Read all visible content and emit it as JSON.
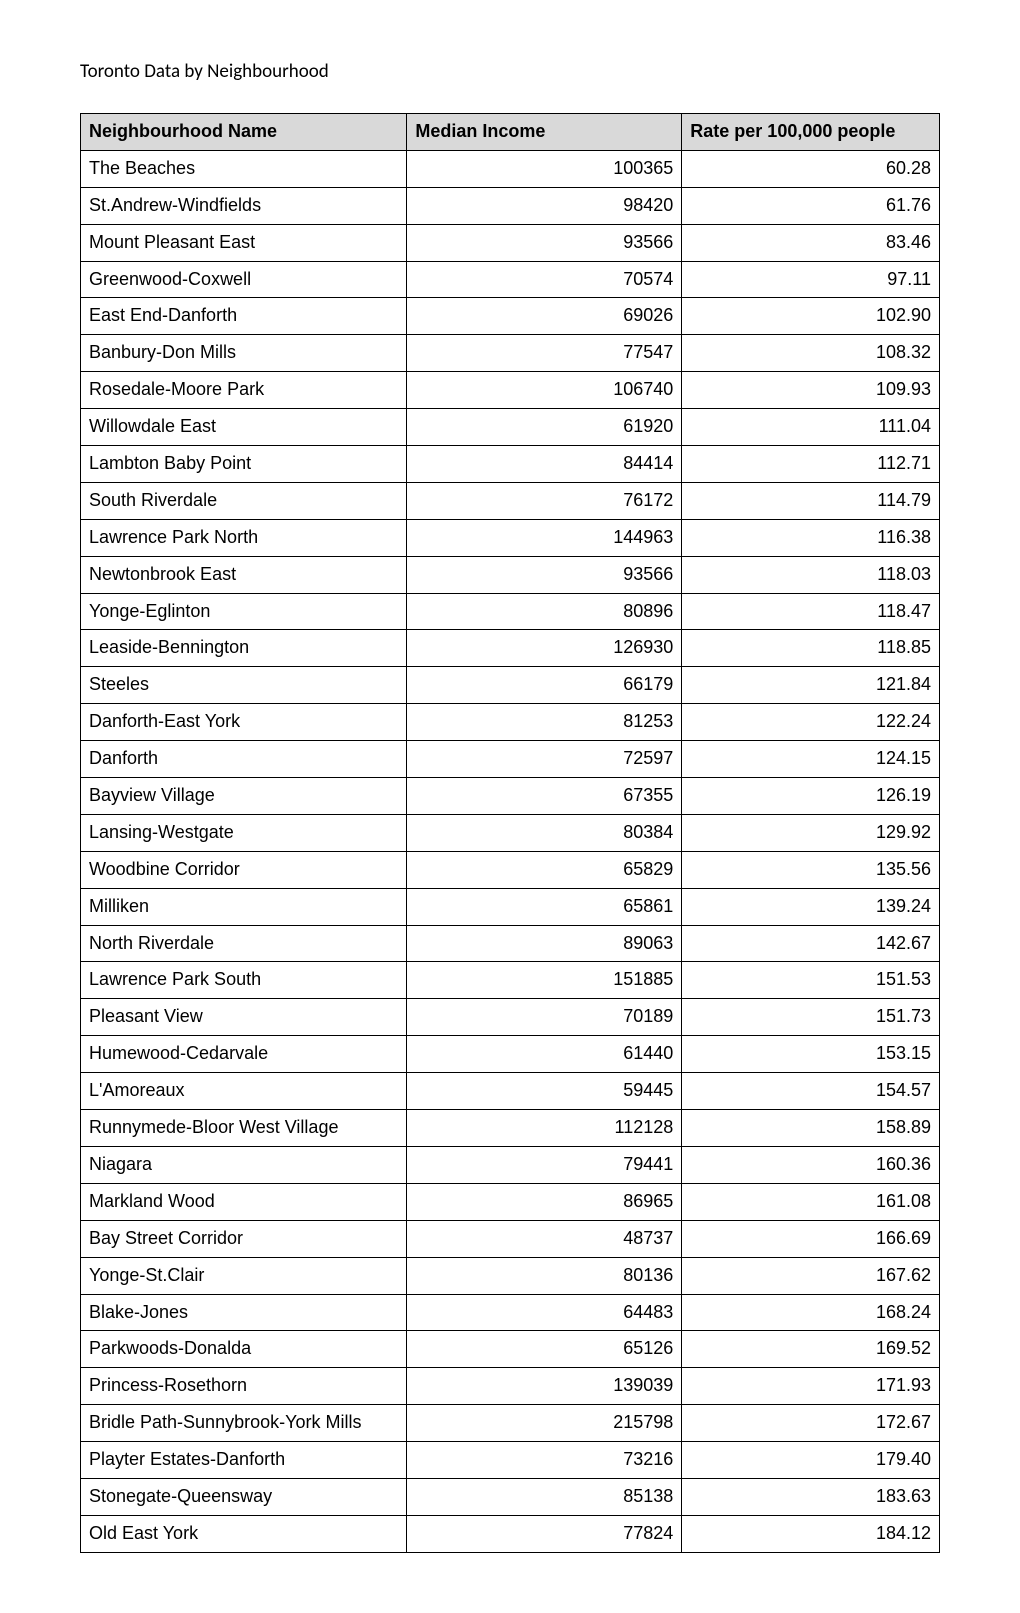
{
  "page": {
    "title": "Toronto Data by Neighbourhood"
  },
  "table": {
    "columns": [
      "Neighbourhood Name",
      "Median Income",
      "Rate per 100,000 people"
    ],
    "header_bg": "#d9d9d9",
    "border_color": "#000000",
    "rows": [
      [
        "The Beaches",
        "100365",
        "60.28"
      ],
      [
        "St.Andrew-Windfields",
        "98420",
        "61.76"
      ],
      [
        "Mount Pleasant East",
        "93566",
        "83.46"
      ],
      [
        "Greenwood-Coxwell",
        "70574",
        "97.11"
      ],
      [
        "East End-Danforth",
        "69026",
        "102.90"
      ],
      [
        "Banbury-Don Mills",
        "77547",
        "108.32"
      ],
      [
        "Rosedale-Moore Park",
        "106740",
        "109.93"
      ],
      [
        "Willowdale East",
        "61920",
        "111.04"
      ],
      [
        "Lambton Baby Point",
        "84414",
        "112.71"
      ],
      [
        "South Riverdale",
        "76172",
        "114.79"
      ],
      [
        "Lawrence Park North",
        "144963",
        "116.38"
      ],
      [
        "Newtonbrook East",
        "93566",
        "118.03"
      ],
      [
        "Yonge-Eglinton",
        "80896",
        "118.47"
      ],
      [
        "Leaside-Bennington",
        "126930",
        "118.85"
      ],
      [
        "Steeles",
        "66179",
        "121.84"
      ],
      [
        "Danforth-East York",
        "81253",
        "122.24"
      ],
      [
        "Danforth",
        "72597",
        "124.15"
      ],
      [
        "Bayview Village",
        "67355",
        "126.19"
      ],
      [
        "Lansing-Westgate",
        "80384",
        "129.92"
      ],
      [
        "Woodbine Corridor",
        "65829",
        "135.56"
      ],
      [
        "Milliken",
        "65861",
        "139.24"
      ],
      [
        "North Riverdale",
        "89063",
        "142.67"
      ],
      [
        "Lawrence Park South",
        "151885",
        "151.53"
      ],
      [
        "Pleasant View",
        "70189",
        "151.73"
      ],
      [
        "Humewood-Cedarvale",
        "61440",
        "153.15"
      ],
      [
        "L'Amoreaux",
        "59445",
        "154.57"
      ],
      [
        "Runnymede-Bloor West Village",
        "112128",
        "158.89"
      ],
      [
        "Niagara",
        "79441",
        "160.36"
      ],
      [
        "Markland Wood",
        "86965",
        "161.08"
      ],
      [
        "Bay Street Corridor",
        "48737",
        "166.69"
      ],
      [
        "Yonge-St.Clair",
        "80136",
        "167.62"
      ],
      [
        "Blake-Jones",
        "64483",
        "168.24"
      ],
      [
        "Parkwoods-Donalda",
        "65126",
        "169.52"
      ],
      [
        "Princess-Rosethorn",
        "139039",
        "171.93"
      ],
      [
        "Bridle Path-Sunnybrook-York Mills",
        "215798",
        "172.67"
      ],
      [
        "Playter Estates-Danforth",
        "73216",
        "179.40"
      ],
      [
        "Stonegate-Queensway",
        "85138",
        "183.63"
      ],
      [
        "Old East York",
        "77824",
        "184.12"
      ]
    ]
  }
}
